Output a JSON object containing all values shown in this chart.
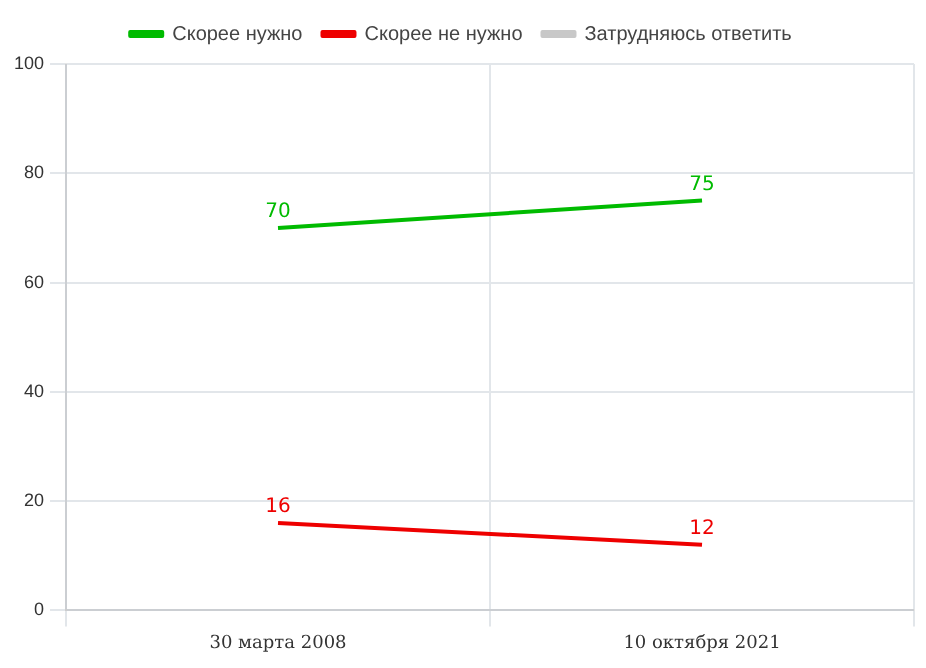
{
  "chart_data": {
    "type": "line",
    "categories": [
      "30 марта 2008",
      "10 октября 2021"
    ],
    "series": [
      {
        "name": "Скорее нужно",
        "color": "#00bb00",
        "values": [
          70,
          75
        ]
      },
      {
        "name": "Скорее не нужно",
        "color": "#ee0000",
        "values": [
          16,
          12
        ]
      },
      {
        "name": "Затрудняюсь ответить",
        "color": "#c8c8c8",
        "values": [
          null,
          null
        ]
      }
    ],
    "ylim": [
      0,
      100
    ],
    "yticks": [
      0,
      20,
      40,
      60,
      80,
      100
    ],
    "grid": true,
    "legend": "top",
    "data_labels": true,
    "marker": "none",
    "line_style": "solid"
  }
}
